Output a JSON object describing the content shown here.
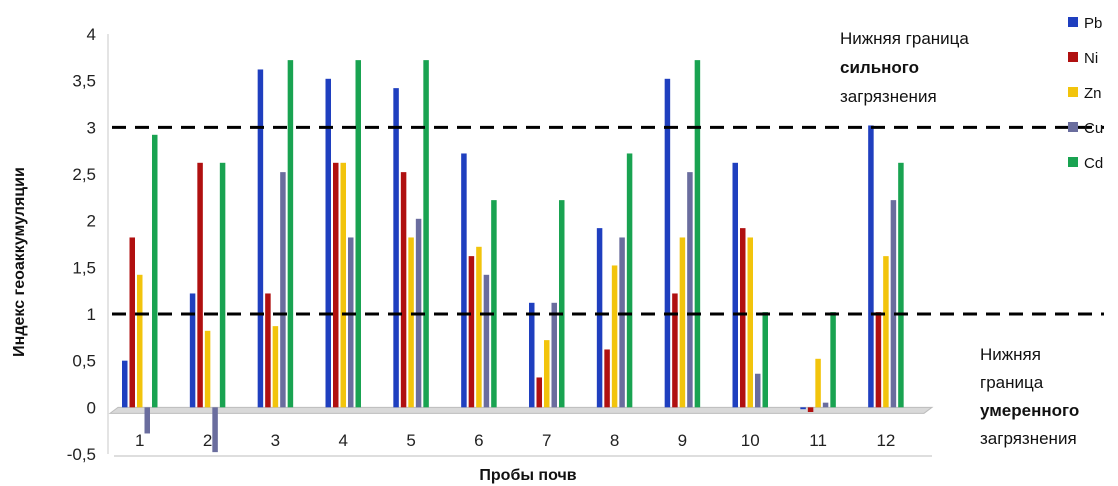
{
  "chart_data": {
    "type": "bar",
    "xlabel": "Пробы почв",
    "ylabel": "Индекс геоаккумуляции",
    "ylim": [
      -0.5,
      4
    ],
    "yticks": [
      "-0,5",
      "0",
      "0,5",
      "1",
      "1,5",
      "2",
      "2,5",
      "3",
      "3,5",
      "4"
    ],
    "ytick_values": [
      -0.5,
      0,
      0.5,
      1,
      1.5,
      2,
      2.5,
      3,
      3.5,
      4
    ],
    "categories": [
      "1",
      "2",
      "3",
      "4",
      "5",
      "6",
      "7",
      "8",
      "9",
      "10",
      "11",
      "12"
    ],
    "series": [
      {
        "name": "Pb",
        "color": "#1f3fbf",
        "values": [
          0.5,
          1.22,
          3.62,
          3.52,
          3.42,
          2.72,
          1.12,
          1.92,
          3.52,
          2.62,
          -0.02,
          3.02
        ]
      },
      {
        "name": "Ni",
        "color": "#b01010",
        "values": [
          1.82,
          2.62,
          1.22,
          2.62,
          2.52,
          1.62,
          0.32,
          0.62,
          1.22,
          1.92,
          -0.05,
          1.02
        ]
      },
      {
        "name": "Zn",
        "color": "#f2c40c",
        "values": [
          1.42,
          0.82,
          0.87,
          2.62,
          1.82,
          1.72,
          0.72,
          1.52,
          1.82,
          1.82,
          0.52,
          1.62
        ]
      },
      {
        "name": "Cu",
        "color": "#6a6d9e",
        "values": [
          -0.28,
          -0.48,
          2.52,
          1.82,
          2.02,
          1.42,
          1.12,
          1.82,
          2.52,
          0.36,
          0.05,
          2.22
        ]
      },
      {
        "name": "Cd",
        "color": "#19a351",
        "values": [
          2.92,
          2.62,
          3.72,
          3.72,
          3.72,
          2.22,
          2.22,
          2.72,
          3.72,
          1.02,
          1.02,
          2.62
        ]
      }
    ],
    "reference_lines": [
      {
        "value": 3,
        "label_lines": [
          "Нижняя граница",
          "сильного",
          "загрязнения"
        ],
        "bold_line": 1
      },
      {
        "value": 1,
        "label_lines": [
          "Нижняя",
          "граница",
          "умеренного",
          "загрязнения"
        ],
        "bold_line": 2
      }
    ],
    "legend_placement": "right",
    "grid": false
  }
}
